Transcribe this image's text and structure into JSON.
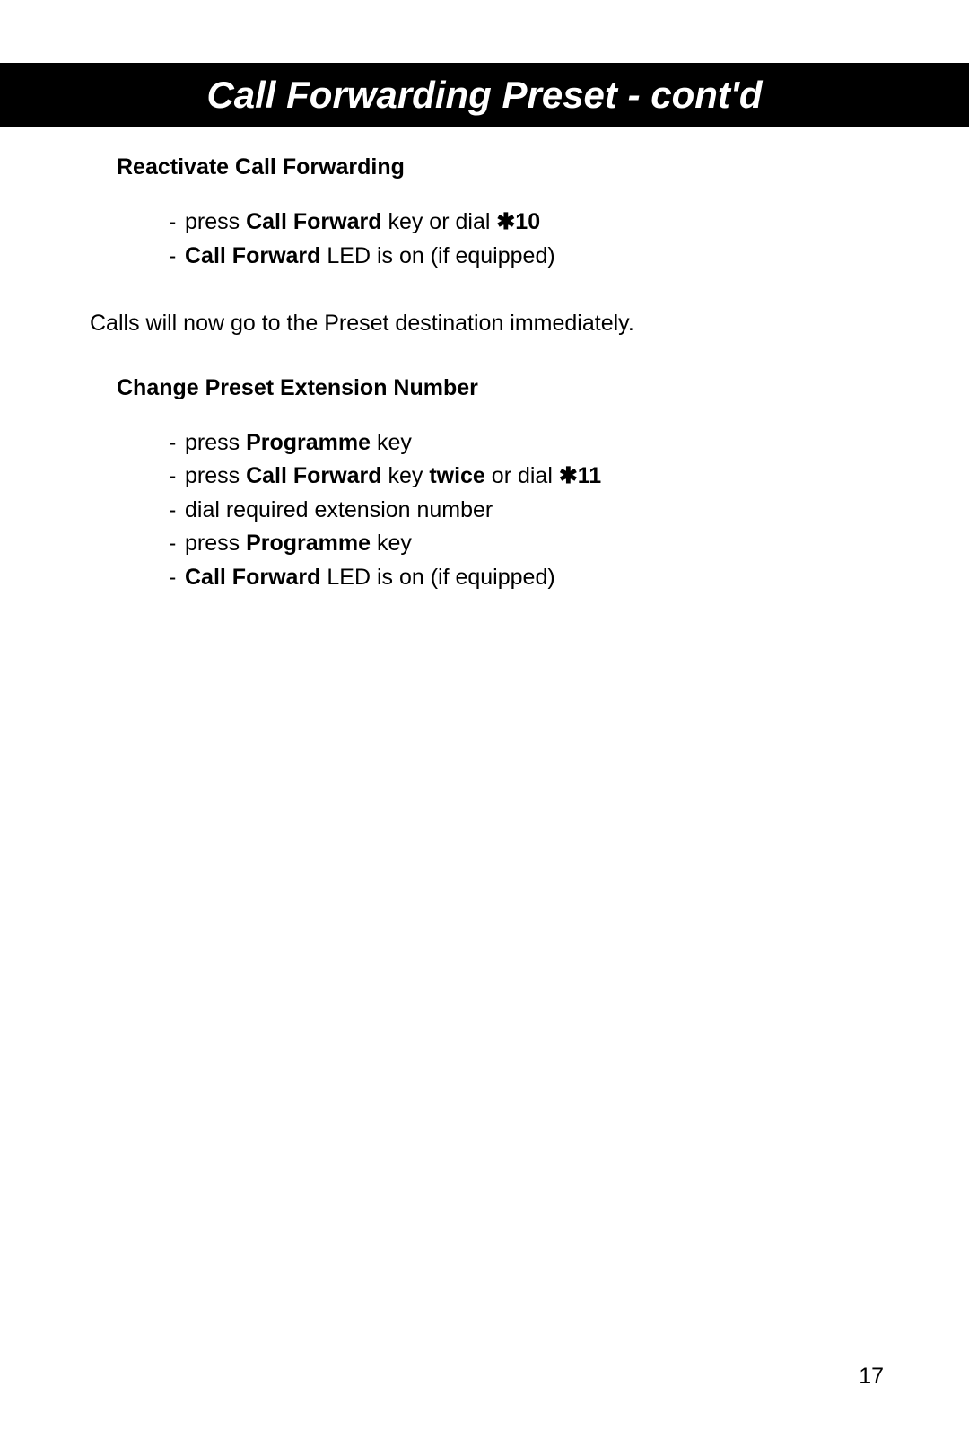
{
  "header": {
    "title": "Call Forwarding Preset - cont'd",
    "background_color": "#000000",
    "text_color": "#ffffff",
    "font_size": 42,
    "font_style": "italic",
    "font_weight": "bold"
  },
  "section1": {
    "heading": "Reactivate Call Forwarding",
    "items": [
      {
        "prefix": "press ",
        "bold1": "Call Forward",
        "mid": " key or dial ",
        "bold2": "✱10",
        "suffix": ""
      },
      {
        "prefix": "",
        "bold1": "Call Forward",
        "mid": " LED is on (if equipped)",
        "bold2": "",
        "suffix": ""
      }
    ]
  },
  "paragraph": {
    "text": "Calls will now go to the Preset destination immediately."
  },
  "section2": {
    "heading": "Change Preset Extension Number",
    "items": [
      {
        "prefix": "press ",
        "bold1": "Programme",
        "mid": " key",
        "bold2": "",
        "suffix": ""
      },
      {
        "prefix": "press ",
        "bold1": "Call Forward",
        "mid": " key ",
        "bold2": "twice",
        "suffix1": " or dial ",
        "bold3": "✱11",
        "suffix": ""
      },
      {
        "prefix": "dial required extension number",
        "bold1": "",
        "mid": "",
        "bold2": "",
        "suffix": ""
      },
      {
        "prefix": "press ",
        "bold1": "Programme",
        "mid": " key",
        "bold2": "",
        "suffix": ""
      },
      {
        "prefix": "",
        "bold1": "Call Forward",
        "mid": " LED is on (if equipped)",
        "bold2": "",
        "suffix": ""
      }
    ]
  },
  "page_number": "17",
  "typography": {
    "body_font_size": 25,
    "heading_font_size": 25,
    "text_color": "#000000",
    "background_color": "#ffffff"
  }
}
